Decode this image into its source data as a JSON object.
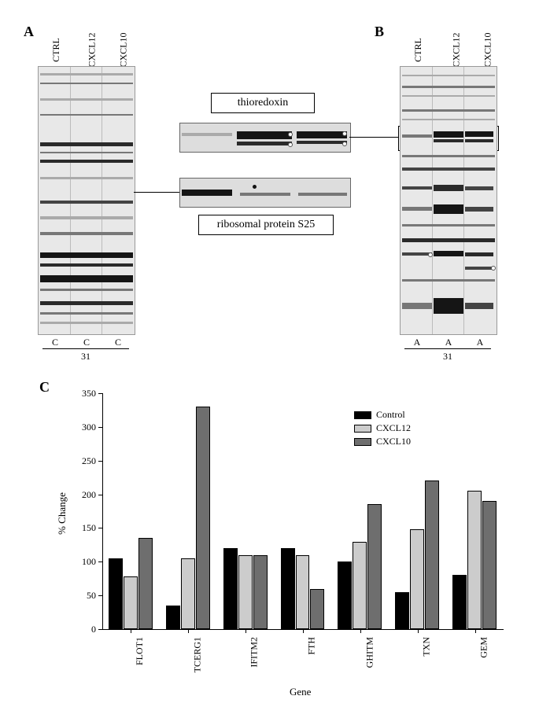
{
  "panelA": {
    "label": "A",
    "lanes": [
      "CTRL",
      "CXCL12",
      "CXCL10"
    ],
    "bottom_each": "C",
    "bottom_line": "31"
  },
  "panelB": {
    "label": "B",
    "lanes": [
      "CTRL",
      "CXCL12",
      "CXCL10"
    ],
    "bottom_each": "A",
    "bottom_line": "31"
  },
  "insets": {
    "top_label": "thioredoxin",
    "bottom_label": "ribosomal protein S25"
  },
  "panelC": {
    "label": "C",
    "chart": {
      "type": "bar",
      "ylabel": "% Change",
      "xlabel": "Gene",
      "ylim": [
        0,
        350
      ],
      "ytick_step": 50,
      "yticks": [
        0,
        50,
        100,
        150,
        200,
        250,
        300,
        350
      ],
      "categories": [
        "FLOT1",
        "TCERG1",
        "IFITM2",
        "FTH",
        "GHITM",
        "TXN",
        "GEM"
      ],
      "series": [
        {
          "name": "Control",
          "color": "#000000",
          "values": [
            105,
            35,
            120,
            120,
            100,
            55,
            80
          ]
        },
        {
          "name": "CXCL12",
          "color": "#cccccc",
          "values": [
            78,
            105,
            110,
            110,
            130,
            148,
            205
          ]
        },
        {
          "name": "CXCL10",
          "color": "#6e6e6e",
          "values": [
            135,
            330,
            110,
            60,
            186,
            220,
            190
          ]
        }
      ],
      "background_color": "#ffffff",
      "axis_color": "#000000",
      "title_fontsize": 13,
      "label_fontsize": 12,
      "bar_group_width": 0.78,
      "bar_gap": 0.02
    }
  }
}
